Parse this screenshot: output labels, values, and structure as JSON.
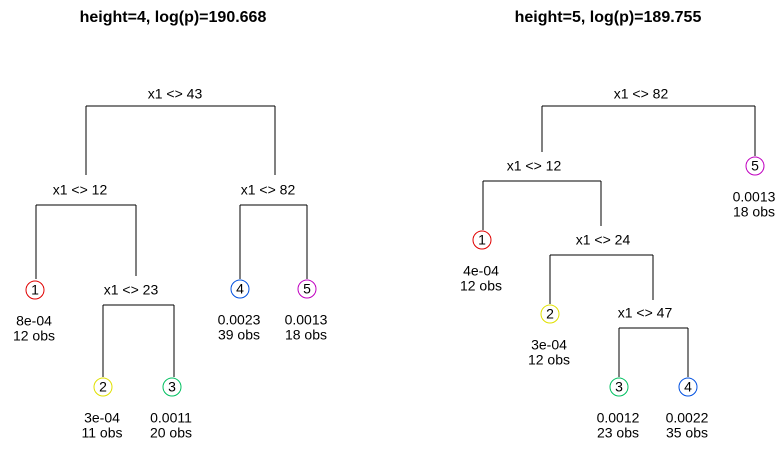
{
  "trees": [
    {
      "title": "height=4, log(p)=190.668",
      "splits": [
        "x1 <> 43",
        "x1 <> 12",
        "x1 <> 23",
        "x1 <> 82"
      ],
      "leaves": [
        {
          "id": "1",
          "value": "8e-04",
          "obs": "12 obs"
        },
        {
          "id": "2",
          "value": "3e-04",
          "obs": "11 obs"
        },
        {
          "id": "3",
          "value": "0.0011",
          "obs": "20 obs"
        },
        {
          "id": "4",
          "value": "0.0023",
          "obs": "39 obs"
        },
        {
          "id": "5",
          "value": "0.0013",
          "obs": "18 obs"
        }
      ]
    },
    {
      "title": "height=5, log(p)=189.755",
      "splits": [
        "x1 <> 82",
        "x1 <> 12",
        "x1 <> 24",
        "x1 <> 47"
      ],
      "leaves": [
        {
          "id": "1",
          "value": "4e-04",
          "obs": "12 obs"
        },
        {
          "id": "2",
          "value": "3e-04",
          "obs": "12 obs"
        },
        {
          "id": "3",
          "value": "0.0012",
          "obs": "23 obs"
        },
        {
          "id": "4",
          "value": "0.0022",
          "obs": "35 obs"
        },
        {
          "id": "5",
          "value": "0.0013",
          "obs": "18 obs"
        }
      ]
    }
  ]
}
